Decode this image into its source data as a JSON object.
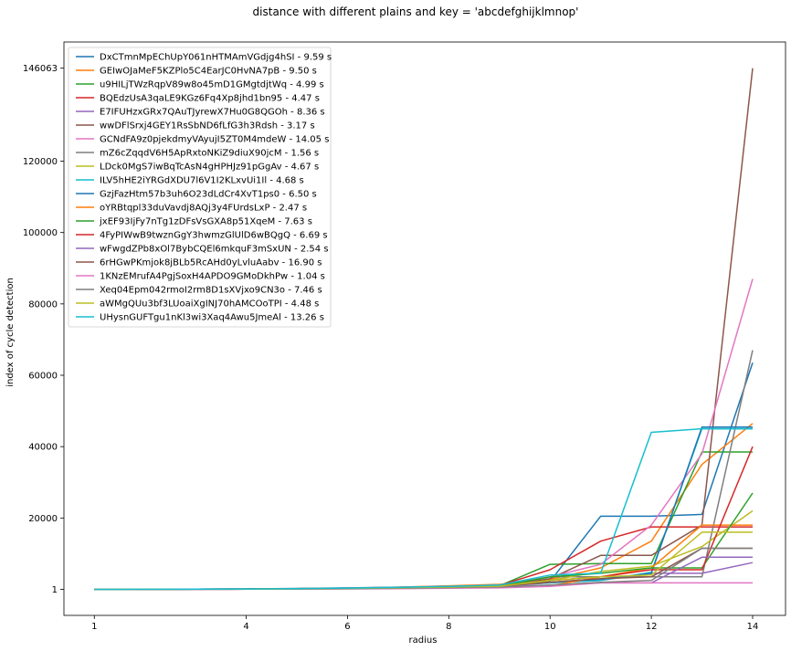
{
  "chart_data": {
    "type": "line",
    "title": "distance with different plains and key = 'abcdefghijklmnop'",
    "xlabel": "radius",
    "ylabel": "index of cycle detection",
    "x": [
      1,
      2,
      3,
      4,
      5,
      6,
      7,
      8,
      9,
      10,
      11,
      12,
      13,
      14
    ],
    "x_ticks": [
      "1",
      "4",
      "6",
      "8",
      "10",
      "12",
      "14"
    ],
    "x_tick_values": [
      1,
      4,
      6,
      8,
      10,
      12,
      14
    ],
    "y_ticks": [
      "1",
      "20000",
      "40000",
      "60000",
      "80000",
      "100000",
      "120000",
      "146063"
    ],
    "y_tick_values": [
      1,
      20000,
      40000,
      60000,
      80000,
      100000,
      120000,
      146063
    ],
    "xlim": [
      0.4,
      14.65
    ],
    "ylim": [
      -7300,
      153400
    ],
    "grid": false,
    "legend_position": "top-left",
    "series": [
      {
        "name": "DxCTmnMpEChUpY061nHTMAmVGdjg4hSI - 9.59 s",
        "color": "#1f77b4",
        "values": [
          1,
          30,
          60,
          120,
          250,
          400,
          600,
          900,
          1300,
          2200,
          20500,
          20500,
          21000,
          63500
        ]
      },
      {
        "name": "GEIwOJaMeF5KZPlo5C4EarJC0HvNA7pB - 9.50 s",
        "color": "#ff7f0e",
        "values": [
          1,
          25,
          50,
          100,
          200,
          350,
          600,
          1000,
          1400,
          2800,
          6000,
          13500,
          35000,
          46500
        ]
      },
      {
        "name": "u9HILjTWzRqpV89w8o45mD1GMgtdjtWq - 4.99 s",
        "color": "#2ca02c",
        "values": [
          1,
          20,
          45,
          90,
          180,
          300,
          500,
          800,
          1000,
          7000,
          7200,
          7200,
          38500,
          38500
        ]
      },
      {
        "name": "BQEdzUsA3qaLE9KGz6Fq4Xp8jhd1bn95 - 4.47 s",
        "color": "#d62728",
        "values": [
          1,
          20,
          40,
          80,
          160,
          300,
          500,
          700,
          1100,
          5500,
          13500,
          17500,
          17500,
          17500
        ]
      },
      {
        "name": "E7IFUHzxGRx7QAuTJyrewX7Hu0G8QGOh - 8.36 s",
        "color": "#9467bd",
        "values": [
          1,
          15,
          30,
          60,
          120,
          250,
          400,
          600,
          800,
          1800,
          2500,
          4500,
          4500,
          7500
        ]
      },
      {
        "name": "wwDFlSrxj4GEY1RsSbND6fLfG3h3Rdsh - 3.17 s",
        "color": "#8c564b",
        "values": [
          1,
          20,
          40,
          70,
          140,
          250,
          400,
          600,
          800,
          3000,
          9500,
          9500,
          18000,
          146063
        ]
      },
      {
        "name": "GCNdFA9z0pjekdmyVAyujI5ZT0M4mdeW - 14.05 s",
        "color": "#e377c2",
        "values": [
          1,
          25,
          50,
          100,
          200,
          350,
          550,
          800,
          1200,
          3500,
          7000,
          18000,
          38000,
          87000
        ]
      },
      {
        "name": "mZ6cZqqdV6H5ApRxtoNKiZ9diuX90jcM - 1.56 s",
        "color": "#7f7f7f",
        "values": [
          1,
          15,
          30,
          55,
          110,
          200,
          330,
          500,
          700,
          3500,
          3500,
          3500,
          3500,
          67000
        ]
      },
      {
        "name": "LDck0MgS7iwBqTcAsN4gHPHJz91pGgAv - 4.67 s",
        "color": "#bcbd22",
        "values": [
          1,
          20,
          40,
          80,
          160,
          280,
          450,
          650,
          1000,
          2500,
          5000,
          6500,
          12000,
          22000
        ]
      },
      {
        "name": "ILV5hHE2iYRGdXDU7l6V1I2KLxvUi1Il - 4.68 s",
        "color": "#17becf",
        "values": [
          1,
          20,
          40,
          80,
          170,
          300,
          500,
          750,
          1100,
          1800,
          2500,
          4800,
          45000,
          45000
        ]
      },
      {
        "name": "GzjFazHtm57b3uh6O23dLdCr4XvT1ps0 - 6.50 s",
        "color": "#1f77b4",
        "values": [
          1,
          25,
          50,
          100,
          200,
          350,
          550,
          800,
          1100,
          2000,
          2800,
          4500,
          45500,
          45500
        ]
      },
      {
        "name": "oYRBtqpl33duVavdj8AQj3y4FUrdsLxP - 2.47 s",
        "color": "#ff7f0e",
        "values": [
          1,
          15,
          25,
          50,
          100,
          180,
          300,
          450,
          600,
          1000,
          3500,
          6000,
          18000,
          18000
        ]
      },
      {
        "name": "jxEF93IjFy7nTg1zDFsVsGXA8p51XqeM - 7.63 s",
        "color": "#2ca02c",
        "values": [
          1,
          20,
          40,
          80,
          160,
          280,
          450,
          650,
          900,
          3500,
          4500,
          6000,
          6000,
          27000
        ]
      },
      {
        "name": "4FyPIWwB9twznGgY3hwmzGlUlD6wBQgQ - 6.69 s",
        "color": "#d62728",
        "values": [
          1,
          20,
          35,
          70,
          140,
          250,
          400,
          600,
          900,
          2500,
          3500,
          5500,
          5500,
          40000
        ]
      },
      {
        "name": "wFwgdZPb8xOl7BybCQEl6mkquF3mSxUN - 2.54 s",
        "color": "#9467bd",
        "values": [
          1,
          15,
          25,
          50,
          90,
          160,
          260,
          400,
          550,
          1000,
          1800,
          1800,
          9000,
          9000
        ]
      },
      {
        "name": "6rHGwPKmjok8jBLb5RcAHd0yLvluAabv - 16.90 s",
        "color": "#8c564b",
        "values": [
          1,
          20,
          40,
          80,
          150,
          260,
          420,
          620,
          900,
          2000,
          3000,
          3500,
          11500,
          11500
        ]
      },
      {
        "name": "1KNzEMrufA4PgjSoxH4APDO9GMoDkhPw - 1.04 s",
        "color": "#e377c2",
        "values": [
          1,
          10,
          20,
          40,
          70,
          120,
          200,
          300,
          400,
          800,
          1800,
          1800,
          1800,
          1800
        ]
      },
      {
        "name": "Xeq04Epm042rmoI2rm8D1sXVjxo9CN3o - 7.46 s",
        "color": "#7f7f7f",
        "values": [
          1,
          15,
          30,
          60,
          110,
          200,
          320,
          480,
          650,
          1200,
          2000,
          2500,
          11500,
          11500
        ]
      },
      {
        "name": "aWMgQUu3bf3LUoaiXgINJ70hAMCOoTPI - 4.48 s",
        "color": "#bcbd22",
        "values": [
          1,
          20,
          40,
          80,
          150,
          270,
          430,
          630,
          900,
          2500,
          3500,
          4000,
          16000,
          16000
        ]
      },
      {
        "name": "UHysnGUFTgu1nKl3wi3Xaq4Awu5JmeAl - 13.26 s",
        "color": "#17becf",
        "values": [
          1,
          25,
          50,
          100,
          200,
          350,
          550,
          800,
          1200,
          4000,
          4500,
          44000,
          45000,
          45000
        ]
      }
    ]
  }
}
